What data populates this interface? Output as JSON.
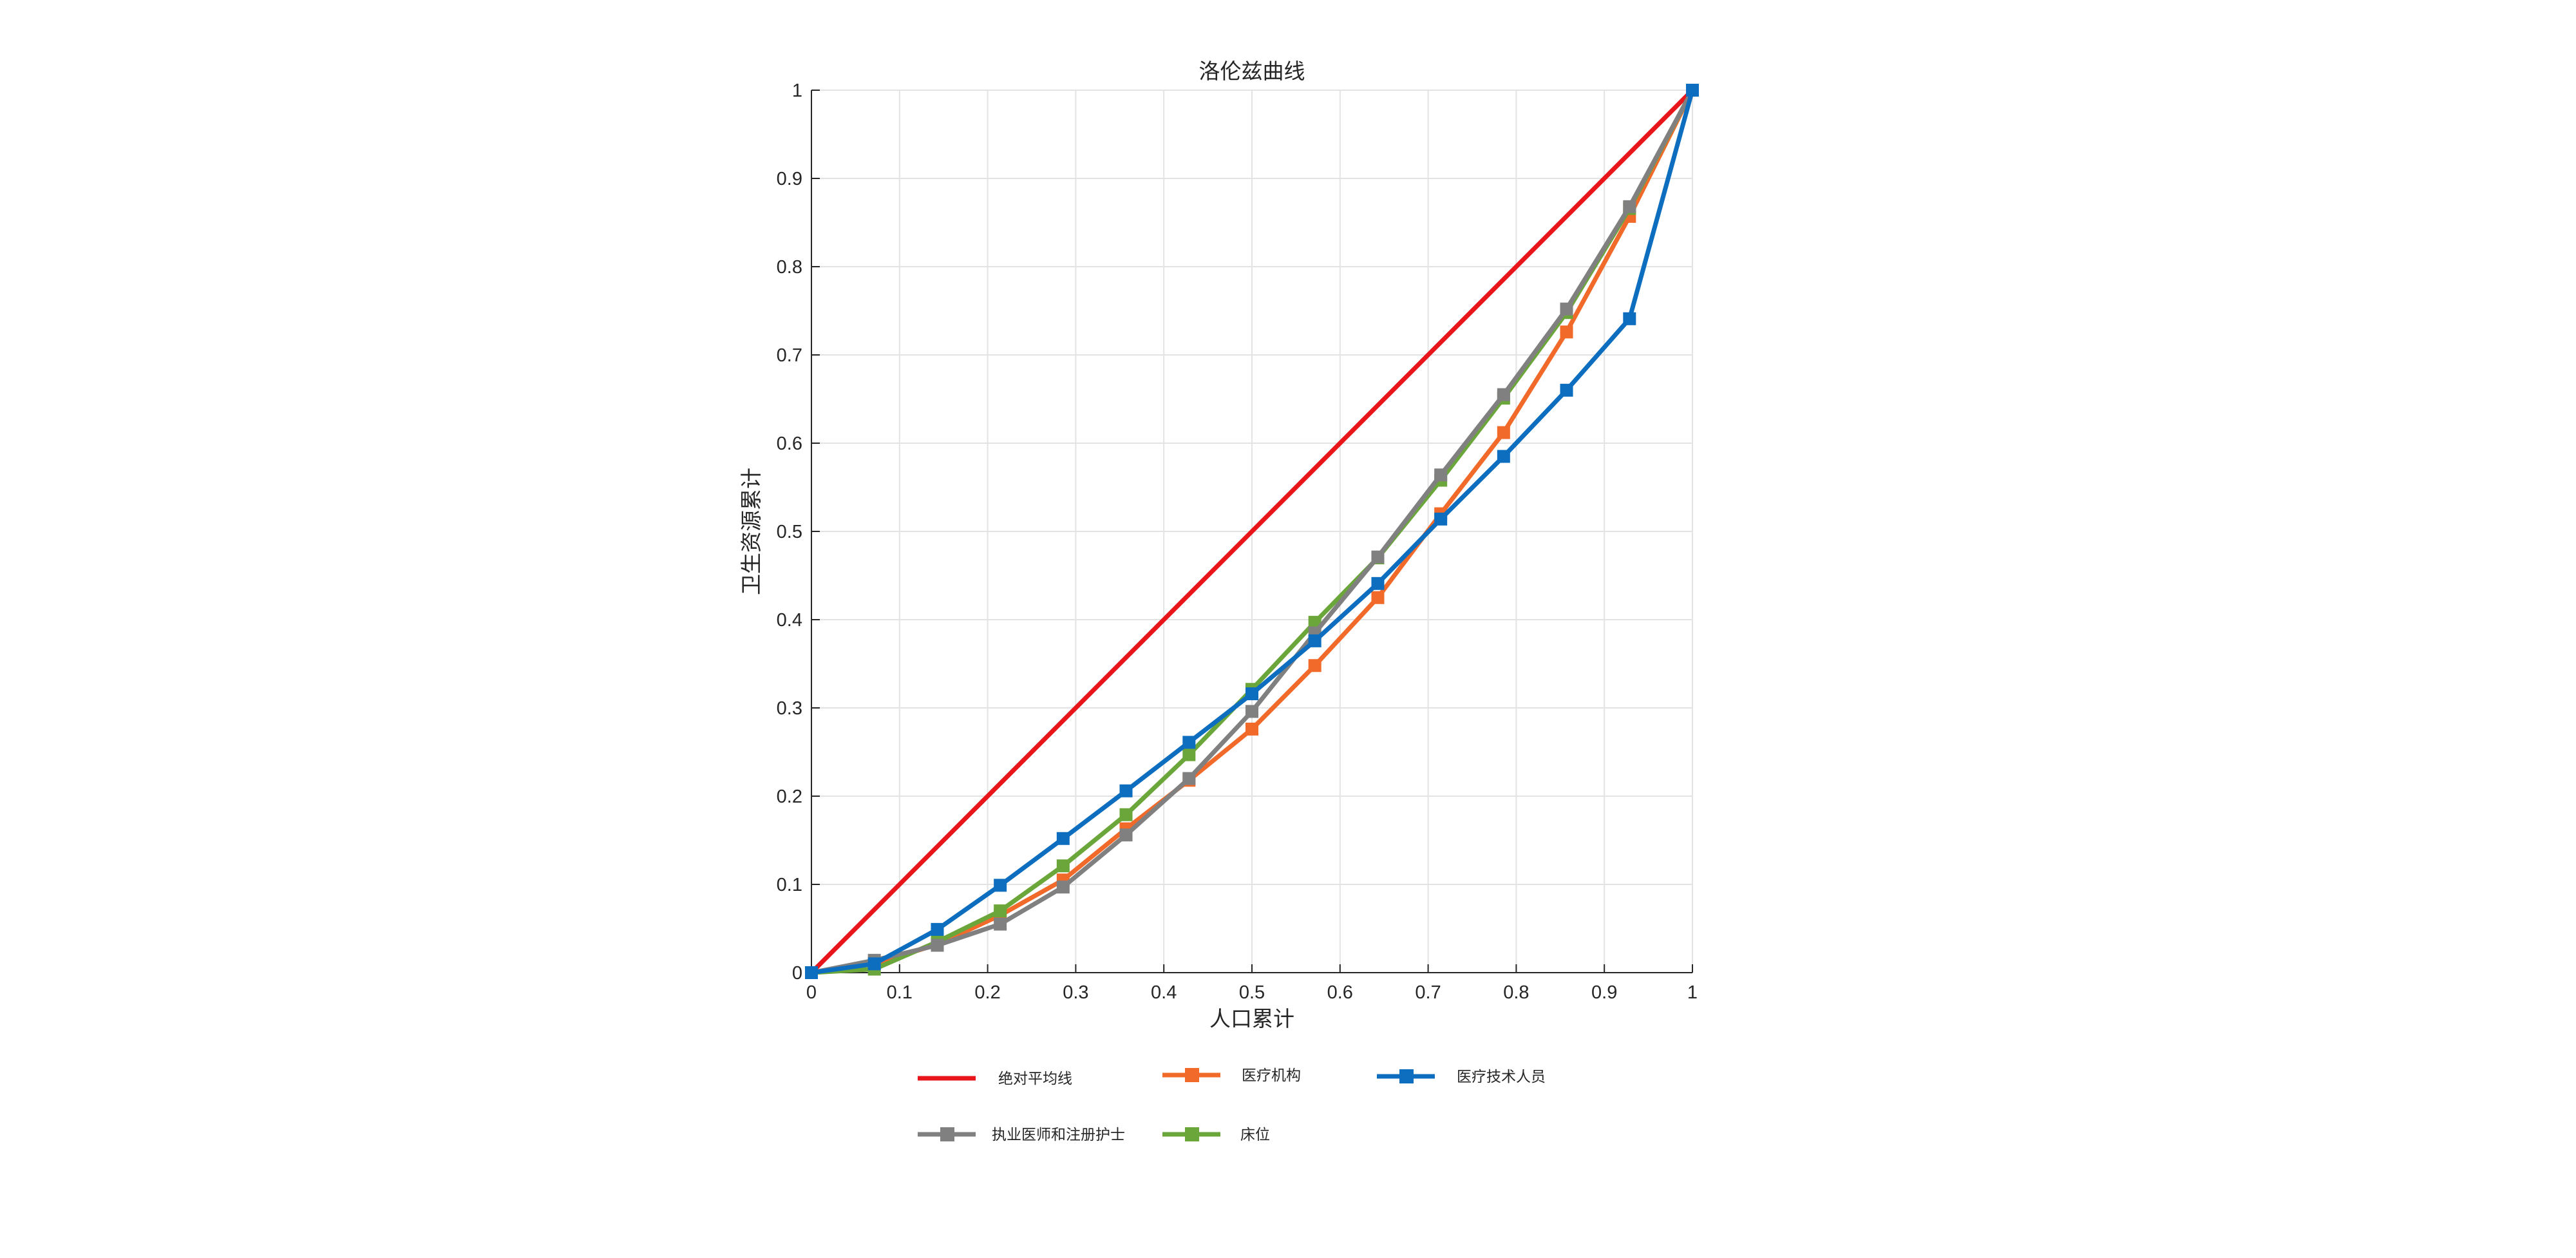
{
  "chart_data": {
    "type": "line",
    "title": "洛伦兹曲线",
    "xlabel": "人口累计",
    "ylabel": "卫生资源累计",
    "xlim": [
      0,
      1
    ],
    "ylim": [
      0,
      1
    ],
    "xticks": [
      0,
      0.1,
      0.2,
      0.3,
      0.4,
      0.5,
      0.6,
      0.7,
      0.8,
      0.9,
      1
    ],
    "yticks": [
      0,
      0.1,
      0.2,
      0.3,
      0.4,
      0.5,
      0.6,
      0.7,
      0.8,
      0.9,
      1
    ],
    "xtick_labels": [
      "0",
      "0.1",
      "0.2",
      "0.3",
      "0.4",
      "0.5",
      "0.6",
      "0.7",
      "0.8",
      "0.9",
      "1"
    ],
    "ytick_labels": [
      "0",
      "0.1",
      "0.2",
      "0.3",
      "0.4",
      "0.5",
      "0.6",
      "0.7",
      "0.8",
      "0.9",
      "1"
    ],
    "grid": true,
    "legend_placement": "bottom",
    "x": [
      0,
      0.0714,
      0.1429,
      0.2143,
      0.2857,
      0.3571,
      0.4286,
      0.5,
      0.5714,
      0.6429,
      0.7143,
      0.7857,
      0.8571,
      0.9286,
      1
    ],
    "series": [
      {
        "name": "绝对平均线",
        "color": "#e8161b",
        "marker": "none",
        "x": [
          0,
          1
        ],
        "values": [
          0,
          1
        ]
      },
      {
        "name": "医疗机构",
        "color": "#f26a2a",
        "marker": "square",
        "values": [
          0,
          0.01,
          0.032,
          0.065,
          0.105,
          0.163,
          0.218,
          0.276,
          0.348,
          0.425,
          0.52,
          0.612,
          0.726,
          0.857,
          1
        ]
      },
      {
        "name": "医疗技术人员",
        "color": "#0d6ebf",
        "marker": "square",
        "values": [
          0,
          0.01,
          0.049,
          0.099,
          0.152,
          0.206,
          0.261,
          0.316,
          0.376,
          0.441,
          0.514,
          0.585,
          0.66,
          0.741,
          1
        ]
      },
      {
        "name": "执业医师和注册护士",
        "color": "#808080",
        "marker": "square",
        "values": [
          0,
          0.014,
          0.031,
          0.055,
          0.097,
          0.156,
          0.22,
          0.296,
          0.385,
          0.471,
          0.564,
          0.655,
          0.752,
          0.868,
          1
        ]
      },
      {
        "name": "床位",
        "color": "#6ba63a",
        "marker": "square",
        "values": [
          0,
          0.004,
          0.035,
          0.07,
          0.121,
          0.179,
          0.247,
          0.321,
          0.397,
          0.47,
          0.558,
          0.651,
          0.748,
          0.866,
          1
        ]
      }
    ]
  }
}
